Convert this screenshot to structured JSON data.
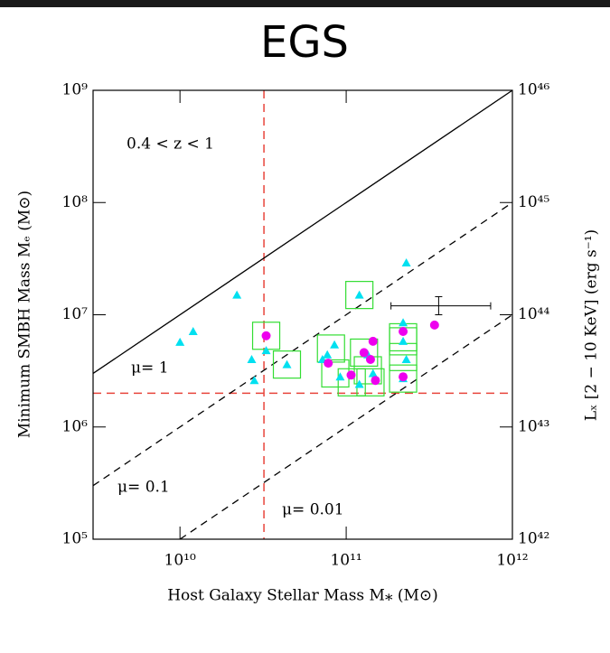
{
  "chart_data": {
    "type": "scatter",
    "title": "EGS",
    "x_label": "Host Galaxy Stellar Mass M⁎ (M⊙)",
    "y_label": "Minimum SMBH Mass Mₑ (M⊙)",
    "y2_label": "Lₓ [2 − 10 KeV] (erg s⁻¹)",
    "annotation": "0.4 < z < 1",
    "log_x": true,
    "log_y": true,
    "xlim": [
      3000000000.0,
      1000000000000.0
    ],
    "xticks": [
      {
        "value": 10000000000.0,
        "label": "10¹⁰"
      },
      {
        "value": 100000000000.0,
        "label": "10¹¹"
      },
      {
        "value": 1000000000000.0,
        "label": "10¹²"
      }
    ],
    "ylim": [
      100000.0,
      1000000000.0
    ],
    "yticks": [
      {
        "value": 100000.0,
        "label": "10⁵"
      },
      {
        "value": 1000000.0,
        "label": "10⁶"
      },
      {
        "value": 10000000.0,
        "label": "10⁷"
      },
      {
        "value": 100000000.0,
        "label": "10⁸"
      },
      {
        "value": 1000000000.0,
        "label": "10⁹"
      }
    ],
    "y2lim": [
      1e+42,
      1e+46
    ],
    "y2ticks": [
      {
        "value": 1e+42,
        "label": "10⁴²"
      },
      {
        "value": 1e+43,
        "label": "10⁴³"
      },
      {
        "value": 1e+44,
        "label": "10⁴⁴"
      },
      {
        "value": 1e+45,
        "label": "10⁴⁵"
      },
      {
        "value": 1e+46,
        "label": "10⁴⁶"
      }
    ],
    "lines": [
      {
        "label": "μ= 1",
        "style": "solid",
        "x": [
          3000000000.0,
          1000000000000.0
        ],
        "values": [
          3000000.0,
          1000000000.0
        ]
      },
      {
        "label": "μ= 0.1",
        "style": "dashed",
        "x": [
          3000000000.0,
          1000000000000.0
        ],
        "values": [
          300000.0,
          100000000.0
        ]
      },
      {
        "label": "μ= 0.01",
        "style": "dashed",
        "x": [
          10000000000.0,
          1000000000000.0
        ],
        "values": [
          100000.0,
          10000000.0
        ]
      }
    ],
    "reference_lines": {
      "color": "#e8453c",
      "x": 32000000000.0,
      "y": 2000000.0
    },
    "series": [
      {
        "marker": "triangle",
        "color": "#00e0f0",
        "x": [
          10000000000.0,
          12000000000.0,
          22000000000.0,
          27000000000.0,
          28000000000.0,
          33000000000.0,
          44000000000.0,
          72000000000.0,
          77000000000.0,
          85000000000.0,
          92000000000.0,
          120000000000.0,
          120000000000.0,
          135000000000.0,
          145000000000.0,
          220000000000.0,
          230000000000.0,
          220000000000.0,
          230000000000.0,
          220000000000.0
        ],
        "values": [
          5700000.0,
          7100000.0,
          15000000.0,
          4000000.0,
          2600000.0,
          4800000.0,
          3600000.0,
          4000000.0,
          4400000.0,
          5400000.0,
          2800000.0,
          15000000.0,
          2400000.0,
          4400000.0,
          3000000.0,
          8500000.0,
          29000000.0,
          5800000.0,
          4000000.0,
          2700000.0
        ]
      },
      {
        "marker": "circle",
        "color": "#ee00ee",
        "x": [
          33000000000.0,
          78000000000.0,
          107000000000.0,
          128000000000.0,
          140000000000.0,
          145000000000.0,
          150000000000.0,
          220000000000.0,
          340000000000.0,
          220000000000.0
        ],
        "values": [
          6500000.0,
          3700000.0,
          2900000.0,
          4600000.0,
          4000000.0,
          5800000.0,
          2600000.0,
          7100000.0,
          8100000.0,
          2800000.0
        ]
      },
      {
        "marker": "square",
        "color": "#33dd33",
        "x": [
          33000000000.0,
          44000000000.0,
          120000000000.0,
          81000000000.0,
          86000000000.0,
          108000000000.0,
          128000000000.0,
          135000000000.0,
          140000000000.0,
          220000000000.0,
          220000000000.0,
          220000000000.0,
          220000000000.0
        ],
        "values": [
          6500000.0,
          3600000.0,
          15000000.0,
          5000000.0,
          3000000.0,
          2500000.0,
          4600000.0,
          3200000.0,
          2500000.0,
          6300000.0,
          5800000.0,
          4200000.0,
          2700000.0
        ]
      }
    ],
    "error_bar": {
      "x": 360000000000.0,
      "y": 12000000.0,
      "xlow": 186000000000.0,
      "xhigh": 740000000000.0,
      "ylow": 10000000.0,
      "yhigh": 14500000.0
    }
  }
}
